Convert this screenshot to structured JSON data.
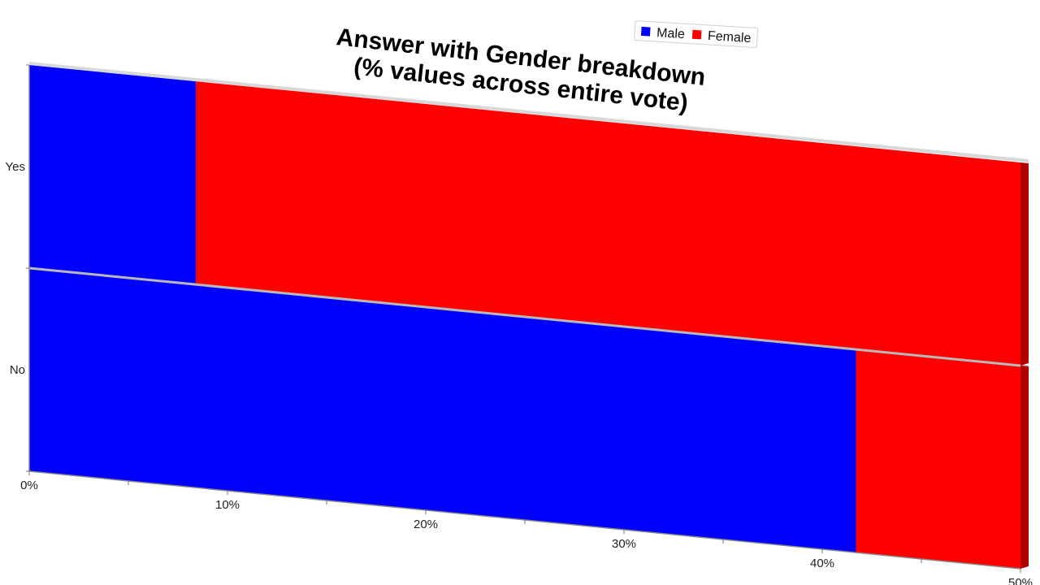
{
  "chart_data": {
    "type": "bar",
    "orientation": "horizontal",
    "stacked": true,
    "title": [
      "Answer with Gender breakdown",
      "(% values across entire vote)"
    ],
    "categories": [
      "Yes",
      "No"
    ],
    "series": [
      {
        "name": "Male",
        "values": [
          8.4,
          41.7
        ]
      },
      {
        "name": "Female",
        "values": [
          41.6,
          8.3
        ]
      }
    ],
    "xlim": [
      0,
      50
    ],
    "x_ticks": [
      0,
      10,
      20,
      30,
      40,
      50
    ],
    "x_tick_labels": [
      "0%",
      "10%",
      "20%",
      "30%",
      "40%",
      "50%"
    ],
    "colors": {
      "Male": "#0000ff",
      "Female": "#ff0000"
    },
    "legend": {
      "position": "top-right"
    },
    "grid": false
  }
}
